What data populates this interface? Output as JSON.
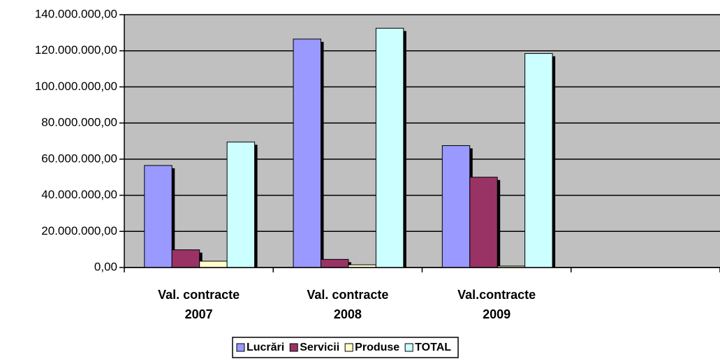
{
  "chart_data": {
    "type": "bar",
    "categories": [
      "Val. contracte 2007",
      "Val. contracte 2008",
      "Val.contracte 2009",
      null
    ],
    "series": [
      {
        "name": "Lucrări",
        "color": "#9999ff",
        "values": [
          56500000,
          126500000,
          67500000,
          null
        ]
      },
      {
        "name": "Servicii",
        "color": "#993366",
        "values": [
          9800000,
          4500000,
          50000000,
          null
        ]
      },
      {
        "name": "Produse",
        "color": "#ffffcc",
        "values": [
          3500000,
          1500000,
          800000,
          null
        ]
      },
      {
        "name": "TOTAL",
        "color": "#ccffff",
        "values": [
          69500000,
          132500000,
          118500000,
          null
        ]
      }
    ],
    "ylim": [
      0,
      140000000
    ],
    "yticks": [
      {
        "value": 0,
        "label": "0,00"
      },
      {
        "value": 20000000,
        "label": "20.000.000,00"
      },
      {
        "value": 40000000,
        "label": "40.000.000,00"
      },
      {
        "value": 60000000,
        "label": "60.000.000,00"
      },
      {
        "value": 80000000,
        "label": "80.000.000,00"
      },
      {
        "value": 100000000,
        "label": "100.000.000,00"
      },
      {
        "value": 120000000,
        "label": "120.000.000,00"
      },
      {
        "value": 140000000,
        "label": "140.000.000,00"
      }
    ],
    "grid": true,
    "plot_background": "#c0c0c0",
    "legend": "bottom"
  }
}
